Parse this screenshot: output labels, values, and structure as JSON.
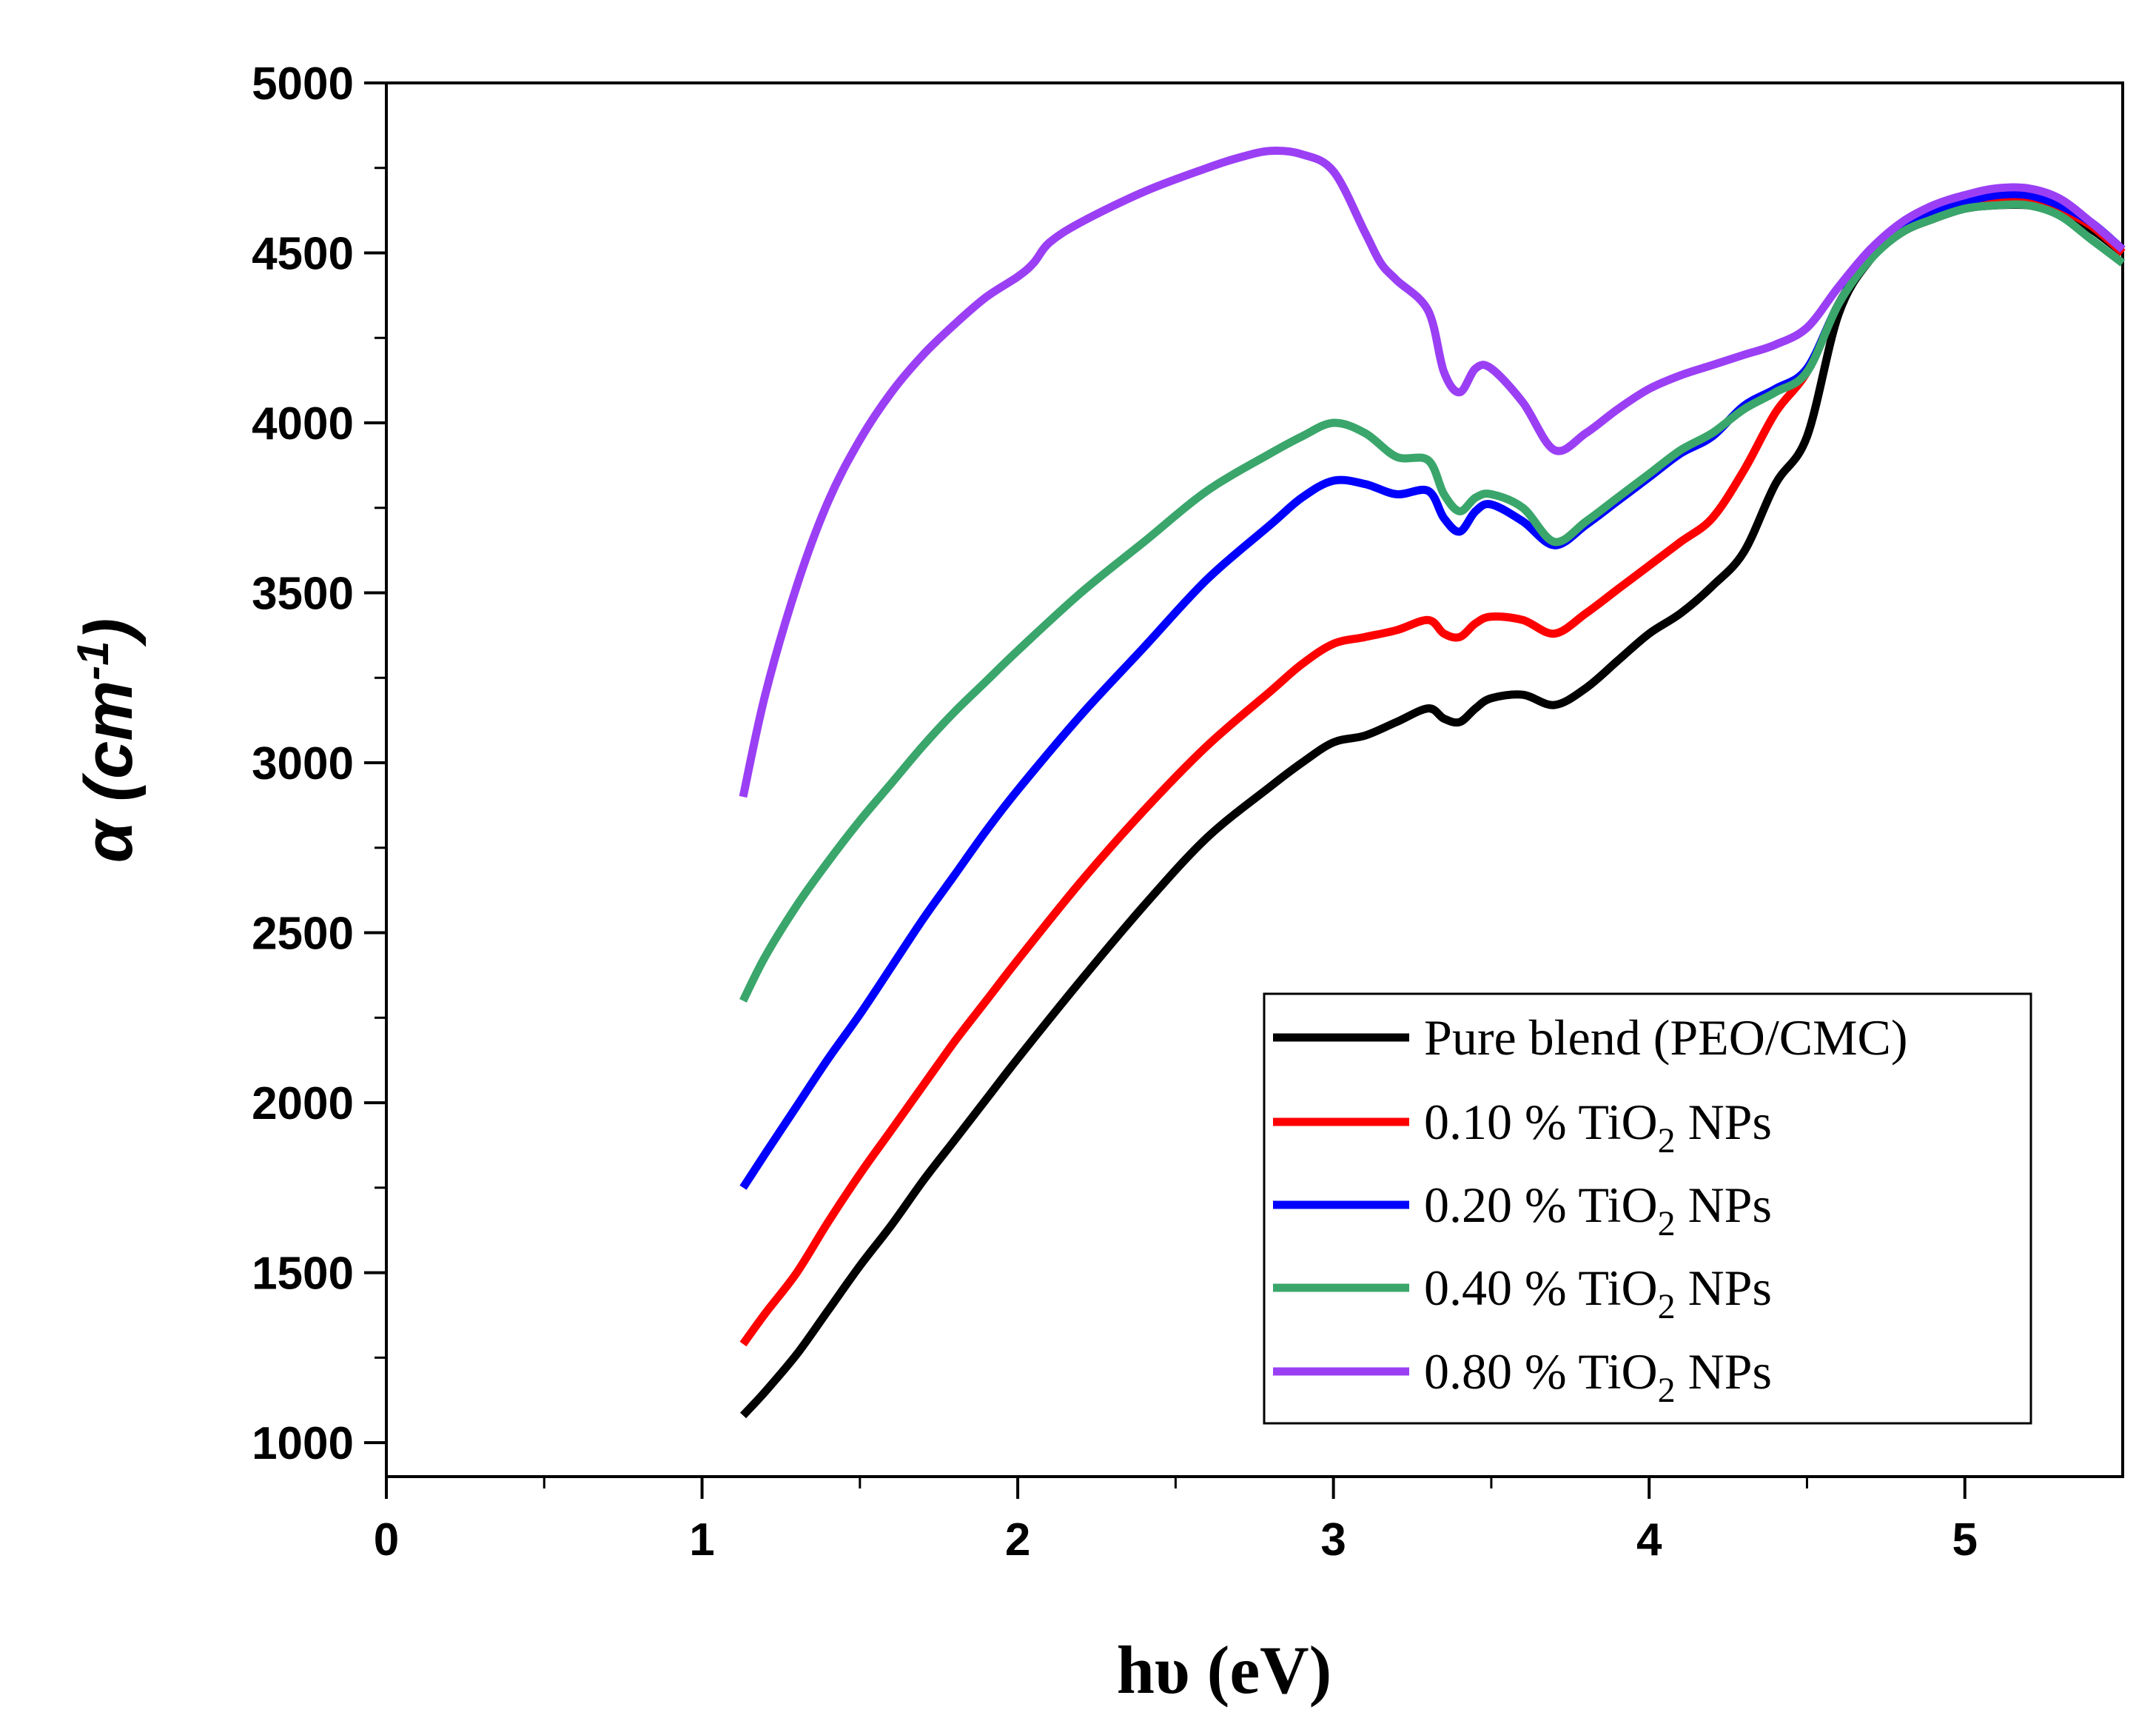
{
  "chart_data": {
    "type": "line",
    "title": "",
    "xlabel": "hυ (eV)",
    "ylabel": {
      "alpha": "α",
      "open": " (cm",
      "sup": "-1",
      "close": ")"
    },
    "xlim": [
      0,
      5.5
    ],
    "ylim": [
      900,
      5000
    ],
    "x_ticks": [
      0,
      1,
      2,
      3,
      4,
      5
    ],
    "x_tick_labels": [
      "0",
      "1",
      "2",
      "3",
      "4",
      "5"
    ],
    "y_ticks": [
      1000,
      1500,
      2000,
      2500,
      3000,
      3500,
      4000,
      4500,
      5000
    ],
    "y_tick_labels": [
      "1000",
      "1500",
      "2000",
      "2500",
      "3000",
      "3500",
      "4000",
      "4500",
      "5000"
    ],
    "grid": false,
    "legend_position": "bottom-right",
    "series": [
      {
        "name": "Pure blend (PEO/CMC)",
        "label_parts": [
          "Pure blend (PEO/CMC)",
          "",
          ""
        ],
        "color": "#000000",
        "points": [
          [
            1.13,
            1080
          ],
          [
            1.2,
            1150
          ],
          [
            1.3,
            1260
          ],
          [
            1.4,
            1390
          ],
          [
            1.5,
            1520
          ],
          [
            1.6,
            1640
          ],
          [
            1.7,
            1770
          ],
          [
            1.8,
            1890
          ],
          [
            1.9,
            2010
          ],
          [
            2.0,
            2130
          ],
          [
            2.2,
            2360
          ],
          [
            2.4,
            2580
          ],
          [
            2.6,
            2780
          ],
          [
            2.8,
            2930
          ],
          [
            2.9,
            3000
          ],
          [
            3.0,
            3060
          ],
          [
            3.1,
            3080
          ],
          [
            3.2,
            3120
          ],
          [
            3.3,
            3160
          ],
          [
            3.35,
            3130
          ],
          [
            3.4,
            3120
          ],
          [
            3.45,
            3160
          ],
          [
            3.5,
            3190
          ],
          [
            3.6,
            3200
          ],
          [
            3.7,
            3170
          ],
          [
            3.8,
            3220
          ],
          [
            3.9,
            3300
          ],
          [
            4.0,
            3380
          ],
          [
            4.1,
            3440
          ],
          [
            4.2,
            3520
          ],
          [
            4.3,
            3620
          ],
          [
            4.4,
            3820
          ],
          [
            4.5,
            3960
          ],
          [
            4.6,
            4320
          ],
          [
            4.7,
            4480
          ],
          [
            4.8,
            4560
          ],
          [
            4.9,
            4600
          ],
          [
            5.0,
            4630
          ],
          [
            5.1,
            4640
          ],
          [
            5.2,
            4640
          ],
          [
            5.3,
            4620
          ],
          [
            5.4,
            4570
          ],
          [
            5.5,
            4500
          ]
        ]
      },
      {
        "name": "0.10 % TiO2 NPs",
        "label_parts": [
          "0.10 % TiO",
          "2",
          " NPs"
        ],
        "color": "#ff0000",
        "points": [
          [
            1.13,
            1290
          ],
          [
            1.2,
            1380
          ],
          [
            1.3,
            1500
          ],
          [
            1.4,
            1650
          ],
          [
            1.5,
            1790
          ],
          [
            1.6,
            1920
          ],
          [
            1.7,
            2050
          ],
          [
            1.8,
            2180
          ],
          [
            1.9,
            2300
          ],
          [
            2.0,
            2420
          ],
          [
            2.2,
            2650
          ],
          [
            2.4,
            2860
          ],
          [
            2.6,
            3050
          ],
          [
            2.8,
            3210
          ],
          [
            2.9,
            3290
          ],
          [
            3.0,
            3350
          ],
          [
            3.1,
            3370
          ],
          [
            3.2,
            3390
          ],
          [
            3.3,
            3420
          ],
          [
            3.35,
            3380
          ],
          [
            3.4,
            3370
          ],
          [
            3.45,
            3410
          ],
          [
            3.5,
            3430
          ],
          [
            3.6,
            3420
          ],
          [
            3.7,
            3380
          ],
          [
            3.8,
            3440
          ],
          [
            3.9,
            3510
          ],
          [
            4.0,
            3580
          ],
          [
            4.1,
            3650
          ],
          [
            4.2,
            3720
          ],
          [
            4.3,
            3860
          ],
          [
            4.4,
            4030
          ],
          [
            4.5,
            4150
          ],
          [
            4.6,
            4350
          ],
          [
            4.7,
            4490
          ],
          [
            4.8,
            4570
          ],
          [
            4.9,
            4610
          ],
          [
            5.0,
            4640
          ],
          [
            5.1,
            4660
          ],
          [
            5.2,
            4660
          ],
          [
            5.3,
            4630
          ],
          [
            5.4,
            4580
          ],
          [
            5.5,
            4500
          ]
        ]
      },
      {
        "name": "0.20 % TiO2 NPs",
        "label_parts": [
          "0.20 % TiO",
          "2",
          " NPs"
        ],
        "color": "#0000ff",
        "points": [
          [
            1.13,
            1750
          ],
          [
            1.2,
            1850
          ],
          [
            1.3,
            1990
          ],
          [
            1.4,
            2130
          ],
          [
            1.5,
            2260
          ],
          [
            1.6,
            2400
          ],
          [
            1.7,
            2540
          ],
          [
            1.8,
            2670
          ],
          [
            1.9,
            2800
          ],
          [
            2.0,
            2920
          ],
          [
            2.2,
            3140
          ],
          [
            2.4,
            3340
          ],
          [
            2.6,
            3540
          ],
          [
            2.8,
            3700
          ],
          [
            2.9,
            3780
          ],
          [
            3.0,
            3830
          ],
          [
            3.1,
            3820
          ],
          [
            3.2,
            3790
          ],
          [
            3.3,
            3800
          ],
          [
            3.35,
            3720
          ],
          [
            3.4,
            3680
          ],
          [
            3.45,
            3740
          ],
          [
            3.5,
            3760
          ],
          [
            3.6,
            3710
          ],
          [
            3.7,
            3640
          ],
          [
            3.8,
            3700
          ],
          [
            3.9,
            3770
          ],
          [
            4.0,
            3840
          ],
          [
            4.1,
            3910
          ],
          [
            4.2,
            3960
          ],
          [
            4.3,
            4050
          ],
          [
            4.4,
            4100
          ],
          [
            4.5,
            4160
          ],
          [
            4.6,
            4350
          ],
          [
            4.7,
            4490
          ],
          [
            4.8,
            4570
          ],
          [
            4.9,
            4620
          ],
          [
            5.0,
            4650
          ],
          [
            5.1,
            4670
          ],
          [
            5.2,
            4670
          ],
          [
            5.3,
            4640
          ],
          [
            5.4,
            4590
          ],
          [
            5.5,
            4510
          ]
        ]
      },
      {
        "name": "0.40 % TiO2 NPs",
        "label_parts": [
          " 0.40 % TiO",
          "2",
          " NPs"
        ],
        "color": "#3aa66b",
        "points": [
          [
            1.13,
            2300
          ],
          [
            1.2,
            2430
          ],
          [
            1.3,
            2580
          ],
          [
            1.4,
            2710
          ],
          [
            1.5,
            2830
          ],
          [
            1.6,
            2940
          ],
          [
            1.7,
            3050
          ],
          [
            1.8,
            3150
          ],
          [
            1.9,
            3240
          ],
          [
            2.0,
            3330
          ],
          [
            2.2,
            3500
          ],
          [
            2.4,
            3650
          ],
          [
            2.6,
            3800
          ],
          [
            2.8,
            3910
          ],
          [
            2.9,
            3960
          ],
          [
            3.0,
            4000
          ],
          [
            3.1,
            3970
          ],
          [
            3.2,
            3900
          ],
          [
            3.3,
            3890
          ],
          [
            3.35,
            3790
          ],
          [
            3.4,
            3740
          ],
          [
            3.45,
            3780
          ],
          [
            3.5,
            3790
          ],
          [
            3.6,
            3750
          ],
          [
            3.7,
            3650
          ],
          [
            3.8,
            3710
          ],
          [
            3.9,
            3780
          ],
          [
            4.0,
            3850
          ],
          [
            4.1,
            3920
          ],
          [
            4.2,
            3970
          ],
          [
            4.3,
            4040
          ],
          [
            4.4,
            4090
          ],
          [
            4.5,
            4150
          ],
          [
            4.6,
            4350
          ],
          [
            4.7,
            4480
          ],
          [
            4.8,
            4560
          ],
          [
            4.9,
            4600
          ],
          [
            5.0,
            4630
          ],
          [
            5.1,
            4640
          ],
          [
            5.2,
            4640
          ],
          [
            5.3,
            4610
          ],
          [
            5.4,
            4540
          ],
          [
            5.5,
            4470
          ]
        ]
      },
      {
        "name": "0.80 % TiO2 NPs",
        "label_parts": [
          "0.80 % TiO",
          "2",
          " NPs"
        ],
        "color": "#9b3ff5",
        "points": [
          [
            1.13,
            2900
          ],
          [
            1.2,
            3200
          ],
          [
            1.3,
            3520
          ],
          [
            1.4,
            3770
          ],
          [
            1.5,
            3950
          ],
          [
            1.6,
            4090
          ],
          [
            1.7,
            4200
          ],
          [
            1.8,
            4290
          ],
          [
            1.9,
            4370
          ],
          [
            2.0,
            4430
          ],
          [
            2.05,
            4470
          ],
          [
            2.1,
            4530
          ],
          [
            2.2,
            4590
          ],
          [
            2.4,
            4680
          ],
          [
            2.6,
            4750
          ],
          [
            2.7,
            4780
          ],
          [
            2.8,
            4800
          ],
          [
            2.9,
            4790
          ],
          [
            3.0,
            4740
          ],
          [
            3.1,
            4560
          ],
          [
            3.15,
            4470
          ],
          [
            3.2,
            4420
          ],
          [
            3.3,
            4330
          ],
          [
            3.35,
            4150
          ],
          [
            3.4,
            4090
          ],
          [
            3.45,
            4160
          ],
          [
            3.5,
            4160
          ],
          [
            3.6,
            4060
          ],
          [
            3.7,
            3920
          ],
          [
            3.8,
            3970
          ],
          [
            3.9,
            4040
          ],
          [
            4.0,
            4100
          ],
          [
            4.1,
            4140
          ],
          [
            4.2,
            4170
          ],
          [
            4.3,
            4200
          ],
          [
            4.4,
            4230
          ],
          [
            4.5,
            4280
          ],
          [
            4.6,
            4400
          ],
          [
            4.7,
            4510
          ],
          [
            4.8,
            4590
          ],
          [
            4.9,
            4640
          ],
          [
            5.0,
            4670
          ],
          [
            5.1,
            4690
          ],
          [
            5.2,
            4690
          ],
          [
            5.3,
            4660
          ],
          [
            5.4,
            4590
          ],
          [
            5.5,
            4510
          ]
        ]
      }
    ]
  }
}
